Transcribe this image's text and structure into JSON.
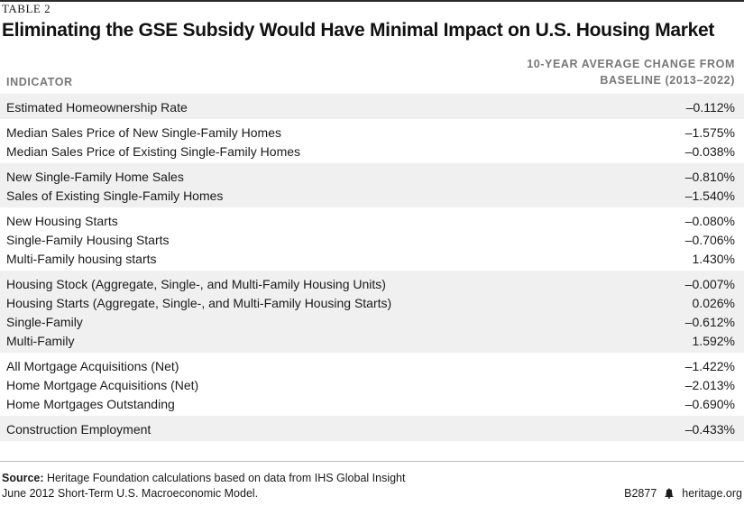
{
  "table_label": "TABLE 2",
  "title": "Eliminating the GSE Subsidy Would Have Minimal Impact on U.S. Housing Market",
  "columns": {
    "indicator": "INDICATOR",
    "change_line1": "10-YEAR AVERAGE CHANGE FROM",
    "change_line2": "BASELINE (2013–2022)"
  },
  "groups": [
    {
      "shaded": true,
      "rows": [
        {
          "indicator": "Estimated Homeownership Rate",
          "value": "–0.112%"
        }
      ]
    },
    {
      "shaded": false,
      "rows": [
        {
          "indicator": "Median Sales Price of New Single-Family Homes",
          "value": "–1.575%"
        },
        {
          "indicator": "Median Sales Price of Existing Single-Family Homes",
          "value": "–0.038%"
        }
      ]
    },
    {
      "shaded": true,
      "rows": [
        {
          "indicator": "New Single-Family Home Sales",
          "value": "–0.810%"
        },
        {
          "indicator": "Sales of Existing Single-Family Homes",
          "value": "–1.540%"
        }
      ]
    },
    {
      "shaded": false,
      "rows": [
        {
          "indicator": "New Housing Starts",
          "value": "–0.080%"
        },
        {
          "indicator": "Single-Family Housing Starts",
          "value": "–0.706%"
        },
        {
          "indicator": "Multi-Family housing starts",
          "value": "1.430%"
        }
      ]
    },
    {
      "shaded": true,
      "rows": [
        {
          "indicator": "Housing Stock (Aggregate, Single-, and Multi-Family Housing Units)",
          "value": "–0.007%"
        },
        {
          "indicator": "Housing Starts (Aggregate, Single-, and Multi-Family Housing Starts)",
          "value": "0.026%"
        },
        {
          "indicator": "Single-Family",
          "value": "–0.612%"
        },
        {
          "indicator": "Multi-Family",
          "value": "1.592%"
        }
      ]
    },
    {
      "shaded": false,
      "rows": [
        {
          "indicator": "All Mortgage Acquisitions (Net)",
          "value": "–1.422%"
        },
        {
          "indicator": "Home Mortgage Acquisitions (Net)",
          "value": "–2.013%"
        },
        {
          "indicator": "Home Mortgages Outstanding",
          "value": "–0.690%"
        }
      ]
    },
    {
      "shaded": true,
      "rows": [
        {
          "indicator": "Construction Employment",
          "value": "–0.433%"
        }
      ]
    }
  ],
  "footer": {
    "source_label": "Source:",
    "source_line1": "Heritage Foundation calculations based on data from IHS Global Insight",
    "source_line2": "June 2012 Short-Term U.S. Macroeconomic Model.",
    "code": "B2877",
    "site": "heritage.org",
    "logo_icon": "liberty-bell-icon"
  }
}
